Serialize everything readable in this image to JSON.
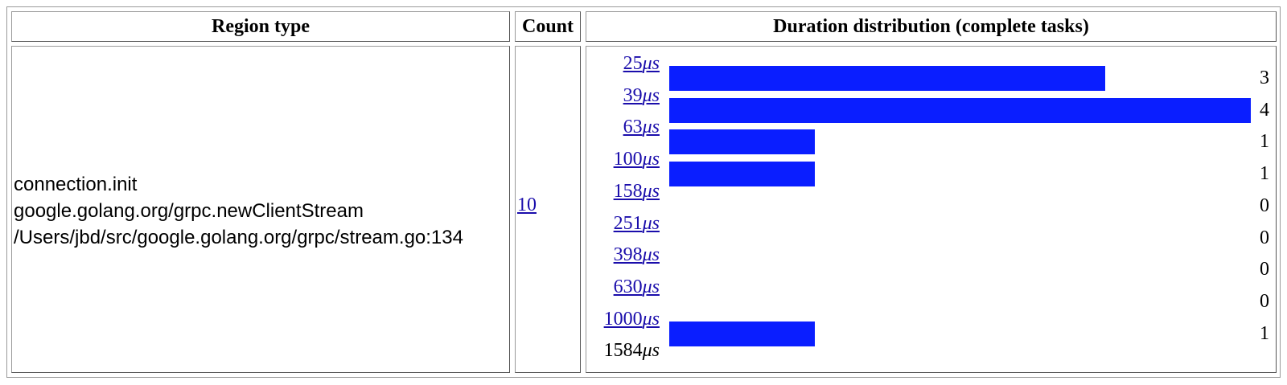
{
  "headers": {
    "region_type": "Region type",
    "count": "Count",
    "duration": "Duration distribution (complete tasks)"
  },
  "row": {
    "region_lines": [
      "connection.init",
      "google.golang.org/grpc.newClientStream",
      "/Users/jbd/src/google.golang.org/grpc/stream.go:134"
    ],
    "count": "10"
  },
  "histogram": {
    "bucket_labels": [
      "25",
      "39",
      "63",
      "100",
      "158",
      "251",
      "398",
      "630",
      "1000",
      "1584"
    ],
    "unit": "μs",
    "counts": [
      3,
      4,
      1,
      1,
      0,
      0,
      0,
      0,
      1
    ],
    "max_count": 4,
    "bar_color": "#0a1eff"
  }
}
